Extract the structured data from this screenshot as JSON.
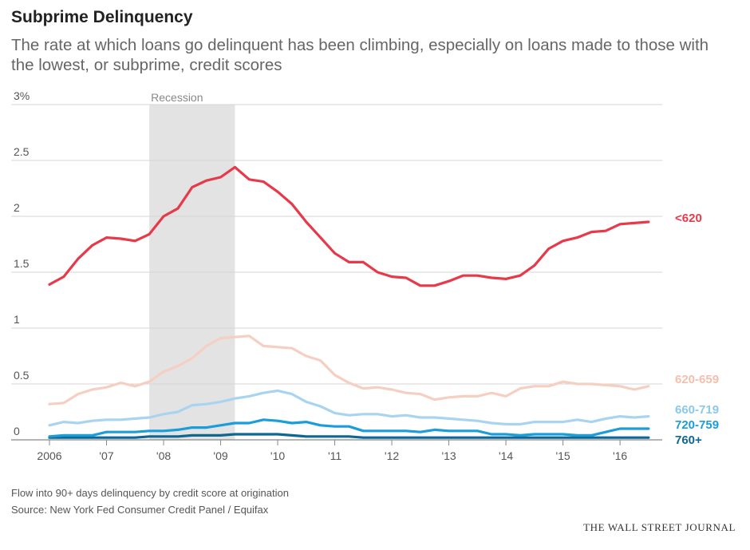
{
  "title": "Subprime Delinquency",
  "subtitle": "The rate at which loans go delinquent has been climbing, especially on loans made to those with the lowest, or subprime, credit scores",
  "footnote": "Flow into 90+ days delinquency by credit score at origination",
  "source": "Source: New York Fed Consumer Credit Panel / Equifax",
  "brand": "THE WALL STREET JOURNAL",
  "chart_data": {
    "type": "line",
    "title": "Subprime Delinquency",
    "xlim": [
      2006,
      2016.6
    ],
    "ylim": [
      0,
      3
    ],
    "grid": true,
    "legend": "direct labels at right end of lines",
    "x_ticks": [
      2006,
      2007,
      2008,
      2009,
      2010,
      2011,
      2012,
      2013,
      2014,
      2015,
      2016
    ],
    "x_tick_labels": [
      "2006",
      "'07",
      "'08",
      "'09",
      "'10",
      "'11",
      "'12",
      "'13",
      "'14",
      "'15",
      "'16"
    ],
    "y_ticks": [
      0,
      0.5,
      1,
      1.5,
      2,
      2.5,
      3
    ],
    "y_tick_labels": [
      "0",
      "0.5",
      "1",
      "1.5",
      "2",
      "2.5",
      "3%"
    ],
    "annotations": [
      {
        "label": "Recession",
        "x_start": 2007.75,
        "x_end": 2009.25,
        "color": "#e3e3e3"
      }
    ],
    "x": [
      2006.0,
      2006.25,
      2006.5,
      2006.75,
      2007.0,
      2007.25,
      2007.5,
      2007.75,
      2008.0,
      2008.25,
      2008.5,
      2008.75,
      2009.0,
      2009.25,
      2009.5,
      2009.75,
      2010.0,
      2010.25,
      2010.5,
      2010.75,
      2011.0,
      2011.25,
      2011.5,
      2011.75,
      2012.0,
      2012.25,
      2012.5,
      2012.75,
      2013.0,
      2013.25,
      2013.5,
      2013.75,
      2014.0,
      2014.25,
      2014.5,
      2014.75,
      2015.0,
      2015.25,
      2015.5,
      2015.75,
      2016.0,
      2016.25,
      2016.5
    ],
    "series": [
      {
        "name": "<620",
        "color": "#e8394a",
        "label_color": "#e8394a",
        "values": [
          1.39,
          1.46,
          1.62,
          1.74,
          1.81,
          1.8,
          1.78,
          1.84,
          2.0,
          2.07,
          2.26,
          2.32,
          2.35,
          2.44,
          2.33,
          2.31,
          2.22,
          2.11,
          1.95,
          1.81,
          1.67,
          1.59,
          1.59,
          1.5,
          1.46,
          1.45,
          1.38,
          1.38,
          1.42,
          1.47,
          1.47,
          1.45,
          1.44,
          1.47,
          1.56,
          1.71,
          1.78,
          1.81,
          1.86,
          1.87,
          1.93,
          1.94,
          1.95
        ]
      },
      {
        "name": "620-659",
        "color": "#f6cfc3",
        "label_color": "#f4bfae",
        "values": [
          0.32,
          0.33,
          0.41,
          0.45,
          0.47,
          0.51,
          0.48,
          0.52,
          0.61,
          0.66,
          0.73,
          0.84,
          0.91,
          0.92,
          0.93,
          0.84,
          0.83,
          0.82,
          0.75,
          0.71,
          0.58,
          0.51,
          0.46,
          0.47,
          0.45,
          0.42,
          0.41,
          0.36,
          0.38,
          0.39,
          0.39,
          0.42,
          0.39,
          0.46,
          0.48,
          0.48,
          0.52,
          0.5,
          0.5,
          0.49,
          0.48,
          0.45,
          0.48
        ]
      },
      {
        "name": "660-719",
        "color": "#a9d4f0",
        "label_color": "#8cc8ec",
        "values": [
          0.13,
          0.16,
          0.15,
          0.17,
          0.18,
          0.18,
          0.19,
          0.2,
          0.23,
          0.25,
          0.31,
          0.32,
          0.34,
          0.37,
          0.39,
          0.42,
          0.44,
          0.41,
          0.34,
          0.3,
          0.24,
          0.22,
          0.23,
          0.23,
          0.21,
          0.22,
          0.2,
          0.2,
          0.19,
          0.18,
          0.17,
          0.15,
          0.14,
          0.14,
          0.16,
          0.16,
          0.16,
          0.18,
          0.16,
          0.19,
          0.21,
          0.2,
          0.21
        ]
      },
      {
        "name": "720-759",
        "color": "#1a9dd9",
        "label_color": "#1a9dd9",
        "values": [
          0.03,
          0.04,
          0.04,
          0.04,
          0.07,
          0.07,
          0.07,
          0.08,
          0.08,
          0.09,
          0.11,
          0.11,
          0.13,
          0.15,
          0.15,
          0.18,
          0.17,
          0.15,
          0.16,
          0.13,
          0.12,
          0.12,
          0.08,
          0.08,
          0.08,
          0.08,
          0.07,
          0.09,
          0.08,
          0.08,
          0.08,
          0.05,
          0.05,
          0.04,
          0.05,
          0.05,
          0.05,
          0.04,
          0.04,
          0.07,
          0.1,
          0.1,
          0.1
        ]
      },
      {
        "name": "760+",
        "color": "#0d6792",
        "label_color": "#0d6792",
        "values": [
          0.02,
          0.02,
          0.02,
          0.02,
          0.02,
          0.02,
          0.02,
          0.03,
          0.03,
          0.03,
          0.04,
          0.04,
          0.04,
          0.05,
          0.05,
          0.05,
          0.05,
          0.04,
          0.03,
          0.03,
          0.03,
          0.03,
          0.02,
          0.02,
          0.02,
          0.02,
          0.02,
          0.02,
          0.02,
          0.02,
          0.02,
          0.02,
          0.02,
          0.02,
          0.02,
          0.02,
          0.02,
          0.02,
          0.02,
          0.02,
          0.02,
          0.02,
          0.02
        ]
      }
    ]
  }
}
